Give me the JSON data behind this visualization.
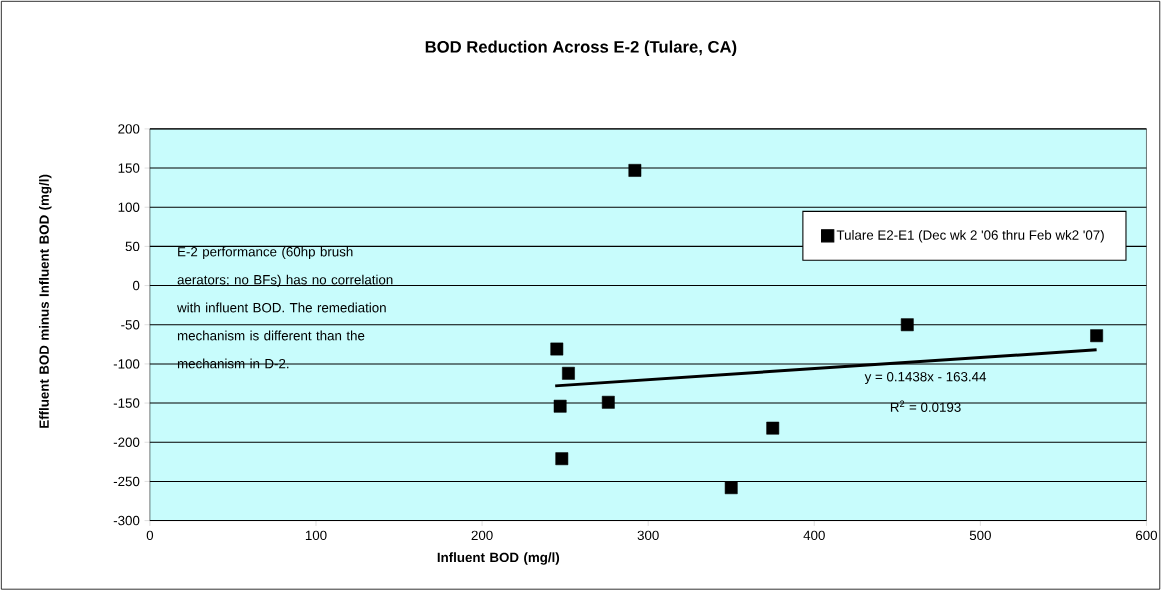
{
  "chart_data": {
    "type": "scatter",
    "title": "BOD Reduction Across E-2 (Tulare, CA)",
    "xlabel": "Influent BOD (mg/l)",
    "ylabel": "Effluent BOD minus Influent BOD (mg/l)",
    "series": [
      {
        "name": "Tulare E2-E1 (Dec wk 2 '06 thru Feb wk2 '07)",
        "color": "#000000",
        "x": [
          245,
          252,
          247,
          276,
          248,
          292,
          350,
          375,
          456,
          570
        ],
        "values": [
          -81,
          -112,
          -154,
          -149,
          -221,
          147,
          -258,
          -182,
          -50,
          -64
        ]
      },
      {
        "type": "line",
        "marker": "none",
        "color": "#000000",
        "x": [
          244,
          570
        ],
        "values": [
          -128,
          -82
        ]
      }
    ],
    "annotations": [
      "E-2 performance (60hp brush aerators; no BFs) has no correlation with influent BOD.  The remediation mechanism is different than the mechanism in D-2.",
      "y = 0.1438x - 163.44",
      "R$^{2}$ = 0.0193"
    ],
    "xlim": [
      0,
      600
    ],
    "xticks": [
      0,
      100,
      200,
      300,
      400,
      500,
      600
    ],
    "ylim": [
      -300,
      200
    ],
    "yticks": [
      -300,
      -250,
      -200,
      -150,
      -100,
      -50,
      0,
      50,
      100,
      150,
      200
    ],
    "grid": "y",
    "legend": "right",
    "marker": "square",
    "line_style": "solid"
  }
}
